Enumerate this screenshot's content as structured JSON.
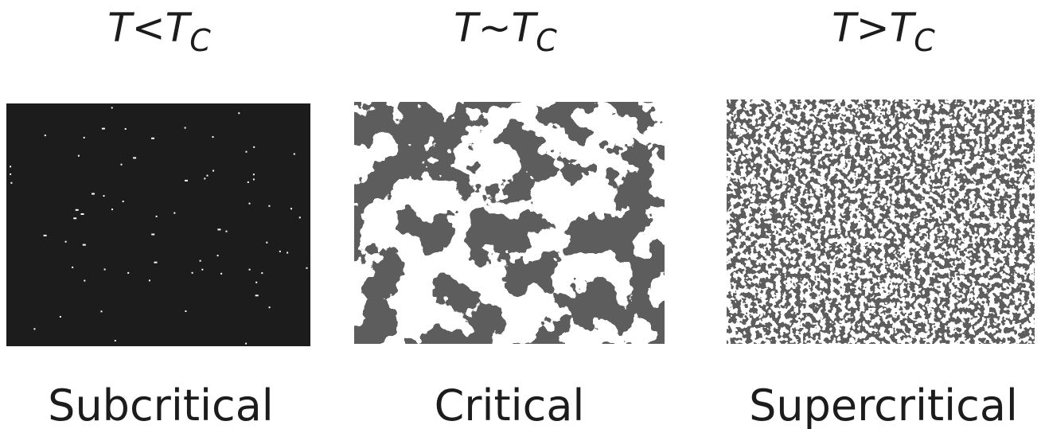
{
  "panels": [
    {
      "title": {
        "base": "T<T",
        "subscript": "C"
      },
      "label": "Subcritical"
    },
    {
      "title": {
        "base": "T~T",
        "subscript": "C"
      },
      "label": "Critical"
    },
    {
      "title": {
        "base": "T>T",
        "subscript": "C"
      },
      "label": "Supercritical"
    }
  ]
}
